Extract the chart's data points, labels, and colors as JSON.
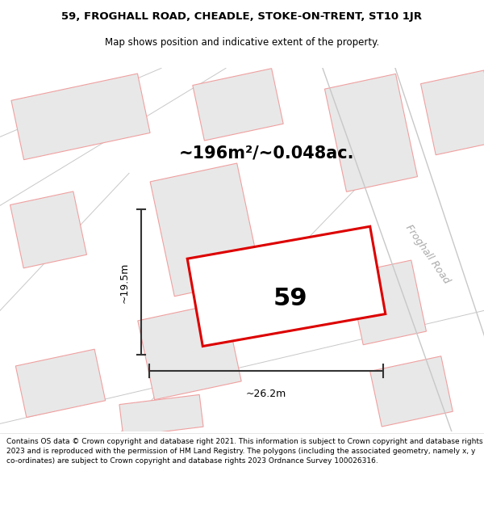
{
  "title_line1": "59, FROGHALL ROAD, CHEADLE, STOKE-ON-TRENT, ST10 1JR",
  "title_line2": "Map shows position and indicative extent of the property.",
  "area_text": "~196m²/~0.048ac.",
  "number_label": "59",
  "dim_width": "~26.2m",
  "dim_height": "~19.5m",
  "road_label": "Froghall Road",
  "footer_text": "Contains OS data © Crown copyright and database right 2021. This information is subject to Crown copyright and database rights 2023 and is reproduced with the permission of HM Land Registry. The polygons (including the associated geometry, namely x, y co-ordinates) are subject to Crown copyright and database rights 2023 Ordnance Survey 100026316.",
  "bg_color": "#ffffff",
  "plot_fill": "#e8e8e8",
  "plot_border_bg": "#f0a0a0",
  "plot_border_main": "#dd0000",
  "road_line_color": "#c8c8c8",
  "road_label_color": "#aaaaaa",
  "dim_line_color": "#333333",
  "text_color": "#000000",
  "title_fontsize": 9.5,
  "subtitle_fontsize": 8.5,
  "area_fontsize": 15,
  "number_fontsize": 22,
  "dim_fontsize": 9,
  "road_label_fontsize": 9,
  "footer_fontsize": 6.5
}
